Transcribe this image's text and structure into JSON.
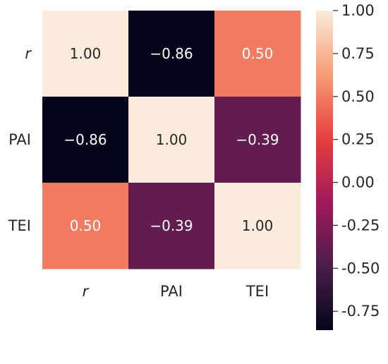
{
  "chart_data": {
    "type": "heatmap",
    "title": "",
    "xlabel": "",
    "ylabel": "",
    "rows": [
      {
        "label": "r",
        "italic": true
      },
      {
        "label": "PAI",
        "italic": false
      },
      {
        "label": "TEI",
        "italic": false
      }
    ],
    "columns": [
      {
        "label": "r",
        "italic": true
      },
      {
        "label": "PAI",
        "italic": false
      },
      {
        "label": "TEI",
        "italic": false
      }
    ],
    "values": [
      [
        1.0,
        -0.86,
        0.5
      ],
      [
        -0.86,
        1.0,
        -0.39
      ],
      [
        0.5,
        -0.39,
        1.0
      ]
    ],
    "cell_labels": [
      [
        "1.00",
        "−0.86",
        "0.50"
      ],
      [
        "−0.86",
        "1.00",
        "−0.39"
      ],
      [
        "0.50",
        "−0.39",
        "1.00"
      ]
    ],
    "colorbar": {
      "range": [
        -0.86,
        1.0
      ],
      "ticks": [
        {
          "value": 1.0,
          "label": "1.00"
        },
        {
          "value": 0.75,
          "label": "0.75"
        },
        {
          "value": 0.5,
          "label": "0.50"
        },
        {
          "value": 0.25,
          "label": "0.25"
        },
        {
          "value": 0.0,
          "label": "0.00"
        },
        {
          "value": -0.25,
          "label": "-0.25"
        },
        {
          "value": -0.5,
          "label": "-0.50"
        },
        {
          "value": -0.75,
          "label": "-0.75"
        }
      ],
      "colormap": "rocket",
      "colormap_stops": [
        "#03051a",
        "#4c1d4b",
        "#a11a5b",
        "#e83f3f",
        "#f69c73",
        "#faebdd"
      ]
    },
    "grid": false
  }
}
